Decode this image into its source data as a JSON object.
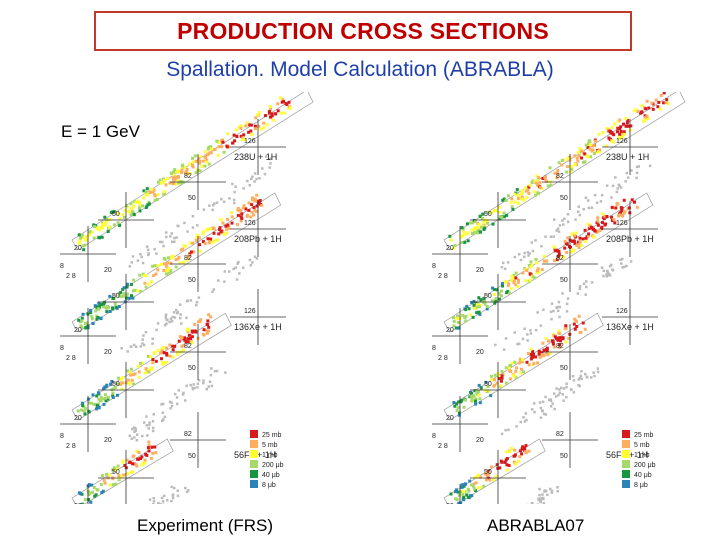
{
  "title": "PRODUCTION CROSS SECTIONS",
  "subtitle": "Spallation.  Model Calculation (ABRABLA)",
  "energy_label": "E = 1 GeV",
  "captions": {
    "left": "Experiment (FRS)",
    "right": "ABRABLA07"
  },
  "reactions": [
    {
      "label": "238U + 1H"
    },
    {
      "label": "208Pb + 1H"
    },
    {
      "label": "136Xe + 1H"
    },
    {
      "label": "56Fe + 1H"
    }
  ],
  "magic_numbers": [
    "2",
    "8",
    "20",
    "28",
    "50",
    "82",
    "126"
  ],
  "legend": [
    {
      "label": "25 mb",
      "color": "#d7191c"
    },
    {
      "label": "5 mb",
      "color": "#fdae61"
    },
    {
      "label": "1 mb",
      "color": "#ffff33"
    },
    {
      "label": "200 μb",
      "color": "#a6d96a"
    },
    {
      "label": "40 μb",
      "color": "#1a9641"
    },
    {
      "label": "8 μb",
      "color": "#2b83ba"
    }
  ]
}
